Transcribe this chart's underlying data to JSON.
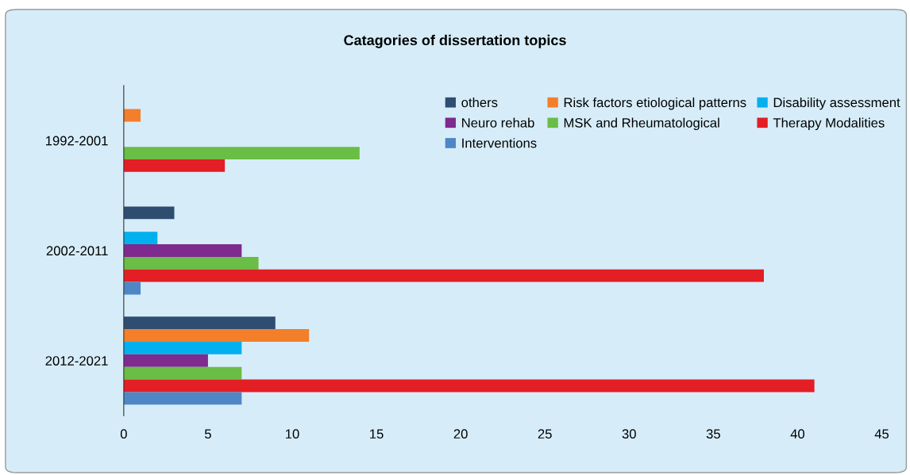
{
  "chart_data": {
    "type": "bar",
    "orientation": "horizontal",
    "title": "Catagories of dissertation topics",
    "categories": [
      "1992-2001",
      "2002-2011",
      "2012-2021"
    ],
    "series": [
      {
        "name": "others",
        "color": "#2e4d70",
        "values": [
          0,
          3,
          9
        ]
      },
      {
        "name": "Risk factors etiological patterns",
        "color": "#f47f2a",
        "values": [
          1,
          0,
          11
        ]
      },
      {
        "name": "Disability assessment",
        "color": "#00b0ef",
        "values": [
          0,
          2,
          7
        ]
      },
      {
        "name": "Neuro rehab",
        "color": "#7e2a8e",
        "values": [
          0,
          7,
          5
        ]
      },
      {
        "name": "MSK and Rheumatological",
        "color": "#6abd45",
        "values": [
          14,
          8,
          7
        ]
      },
      {
        "name": "Therapy Modalities",
        "color": "#e31e24",
        "values": [
          6,
          38,
          41
        ]
      },
      {
        "name": "Interventions",
        "color": "#4f86c6",
        "values": [
          0,
          1,
          7
        ]
      }
    ],
    "xlim": [
      0,
      45
    ],
    "xticks": [
      0,
      5,
      10,
      15,
      20,
      25,
      30,
      35,
      40,
      45
    ],
    "grid": false,
    "legend": "top right"
  }
}
